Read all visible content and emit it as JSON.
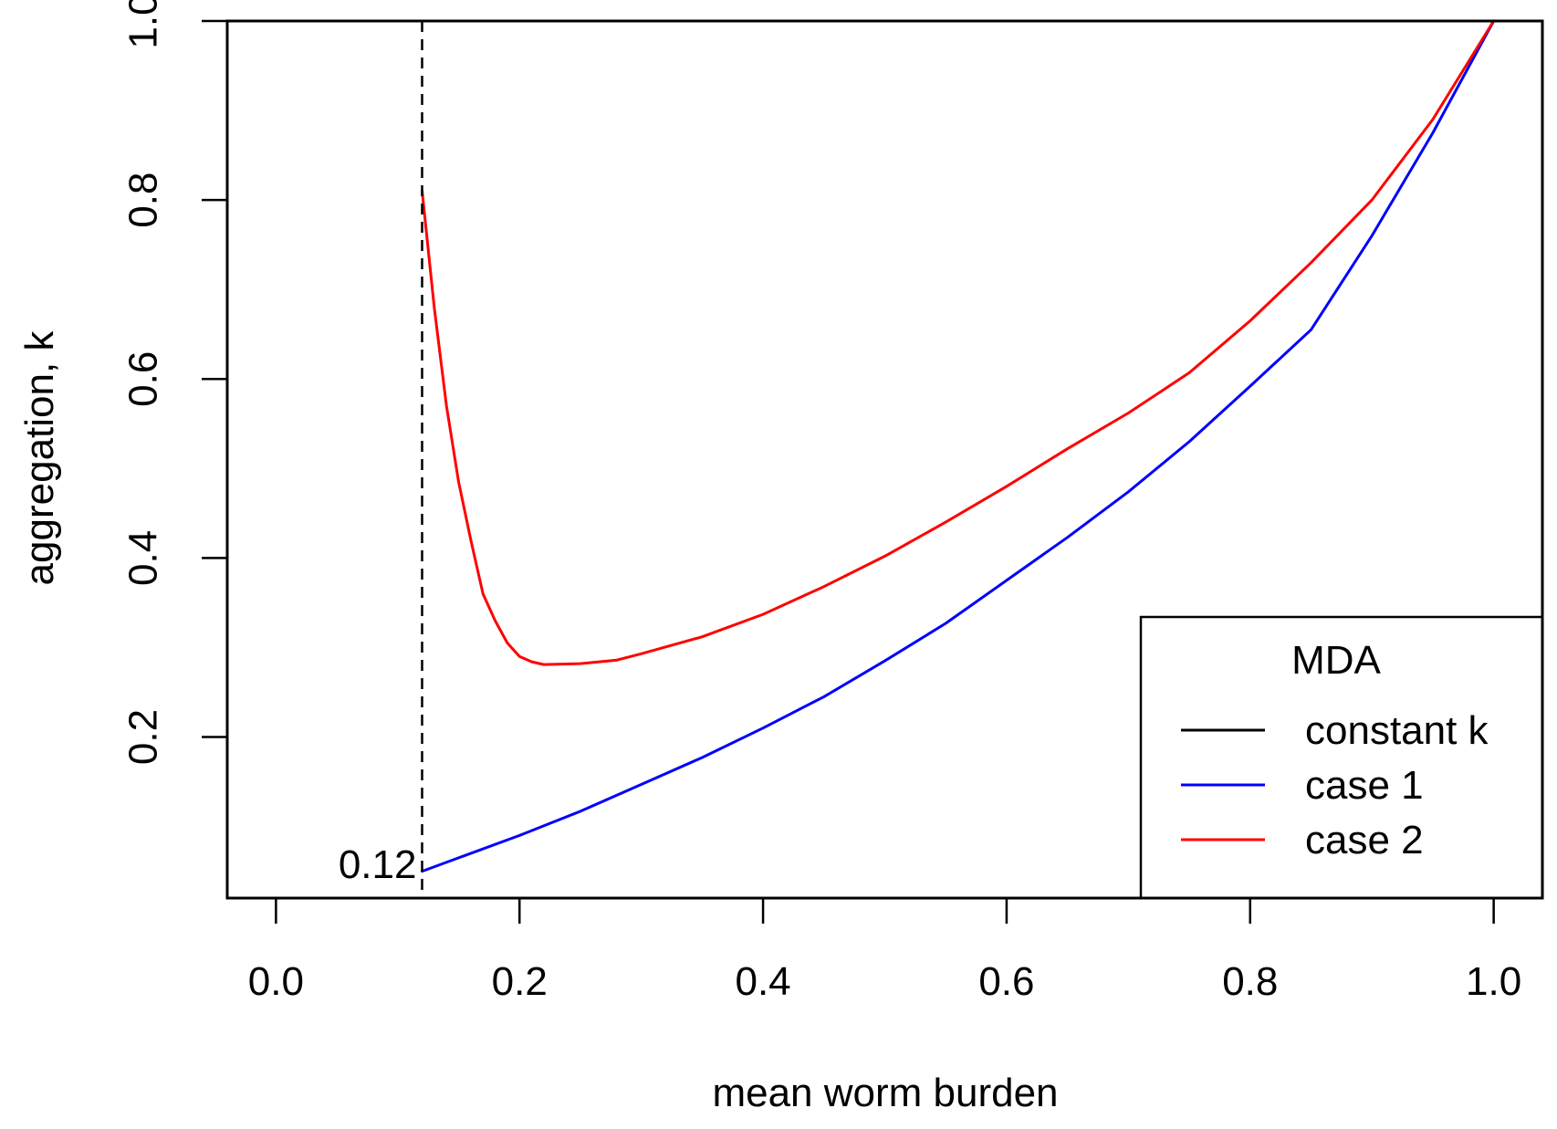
{
  "chart_data": {
    "type": "line",
    "title": "",
    "xlabel": "mean worm burden",
    "ylabel": "aggregation, k",
    "xlim": [
      -0.04,
      1.04
    ],
    "ylim": [
      0.02,
      1.0
    ],
    "x_ticks": [
      0.0,
      0.2,
      0.4,
      0.6,
      0.8,
      1.0
    ],
    "x_tick_labels": [
      "0.0",
      "0.2",
      "0.4",
      "0.6",
      "0.8",
      "1.0"
    ],
    "y_ticks": [
      0.2,
      0.4,
      0.6,
      0.8,
      1.0
    ],
    "y_tick_labels": [
      "0.2",
      "0.4",
      "0.6",
      "0.8",
      "1.0"
    ],
    "grid": false,
    "legend": {
      "title": "MDA",
      "position": "bottom-right"
    },
    "reference_line": {
      "x": 0.12,
      "style": "dashed",
      "label": "0.12"
    },
    "series": [
      {
        "name": "constant k",
        "color": "#000000",
        "x": [
          0.12,
          1.0
        ],
        "y": [
          1.0,
          1.0
        ]
      },
      {
        "name": "case 1",
        "color": "#0000ff",
        "x": [
          0.12,
          0.15,
          0.2,
          0.25,
          0.3,
          0.35,
          0.4,
          0.45,
          0.5,
          0.55,
          0.6,
          0.65,
          0.7,
          0.75,
          0.8,
          0.85,
          0.9,
          0.95,
          1.0
        ],
        "y": [
          0.05,
          0.065,
          0.09,
          0.117,
          0.147,
          0.177,
          0.21,
          0.245,
          0.285,
          0.327,
          0.375,
          0.423,
          0.474,
          0.53,
          0.592,
          0.655,
          0.76,
          0.875,
          1.0
        ]
      },
      {
        "name": "case 2",
        "color": "#ff0000",
        "x": [
          0.12,
          0.13,
          0.14,
          0.15,
          0.16,
          0.17,
          0.18,
          0.19,
          0.2,
          0.21,
          0.22,
          0.25,
          0.28,
          0.3,
          0.35,
          0.4,
          0.45,
          0.5,
          0.55,
          0.6,
          0.65,
          0.7,
          0.75,
          0.8,
          0.85,
          0.9,
          0.95,
          1.0
        ],
        "y": [
          0.81,
          0.68,
          0.57,
          0.485,
          0.42,
          0.36,
          0.33,
          0.305,
          0.29,
          0.284,
          0.281,
          0.282,
          0.286,
          0.293,
          0.312,
          0.337,
          0.368,
          0.402,
          0.44,
          0.48,
          0.522,
          0.562,
          0.607,
          0.665,
          0.73,
          0.8,
          0.89,
          1.0
        ]
      }
    ]
  }
}
